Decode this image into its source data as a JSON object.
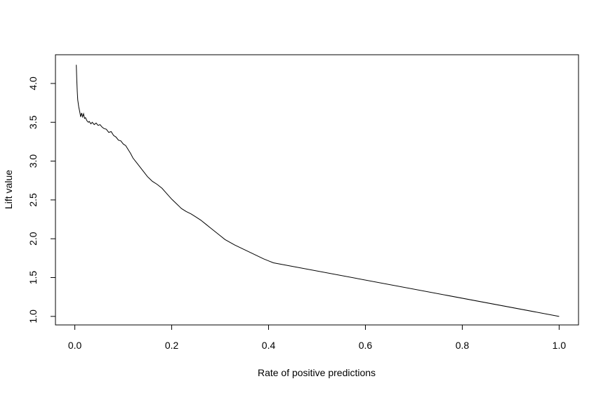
{
  "chart_data": {
    "type": "line",
    "title": "",
    "xlabel": "Rate of positive predictions",
    "ylabel": "Lift value",
    "xlim": [
      -0.04,
      1.04
    ],
    "ylim": [
      0.89,
      4.37
    ],
    "x_ticks": [
      0.0,
      0.2,
      0.4,
      0.6,
      0.8,
      1.0
    ],
    "x_tick_labels": [
      "0.0",
      "0.2",
      "0.4",
      "0.6",
      "0.8",
      "1.0"
    ],
    "y_ticks": [
      1.0,
      1.5,
      2.0,
      2.5,
      3.0,
      3.5,
      4.0
    ],
    "y_tick_labels": [
      "1.0",
      "1.5",
      "2.0",
      "2.5",
      "3.0",
      "3.5",
      "4.0"
    ],
    "grid": false,
    "legend": "none",
    "line_color": "#000000",
    "series": [
      {
        "x": [
          0.003,
          0.004,
          0.005,
          0.006,
          0.008,
          0.01,
          0.012,
          0.014,
          0.016,
          0.018,
          0.02,
          0.022,
          0.025,
          0.028,
          0.03,
          0.033,
          0.036,
          0.04,
          0.044,
          0.048,
          0.052,
          0.056,
          0.06,
          0.065,
          0.07,
          0.075,
          0.08,
          0.085,
          0.09,
          0.095,
          0.1,
          0.105,
          0.11,
          0.115,
          0.12,
          0.13,
          0.14,
          0.15,
          0.16,
          0.17,
          0.18,
          0.19,
          0.2,
          0.21,
          0.22,
          0.23,
          0.24,
          0.25,
          0.26,
          0.27,
          0.28,
          0.29,
          0.3,
          0.31,
          0.33,
          0.35,
          0.37,
          0.39,
          0.41,
          1.0
        ],
        "y": [
          4.24,
          4.05,
          3.9,
          3.79,
          3.7,
          3.64,
          3.57,
          3.62,
          3.57,
          3.61,
          3.55,
          3.56,
          3.52,
          3.5,
          3.51,
          3.48,
          3.5,
          3.47,
          3.49,
          3.46,
          3.47,
          3.44,
          3.42,
          3.41,
          3.37,
          3.38,
          3.33,
          3.31,
          3.27,
          3.26,
          3.22,
          3.2,
          3.15,
          3.1,
          3.04,
          2.96,
          2.88,
          2.8,
          2.74,
          2.7,
          2.65,
          2.58,
          2.51,
          2.45,
          2.39,
          2.35,
          2.32,
          2.28,
          2.24,
          2.19,
          2.14,
          2.09,
          2.04,
          1.99,
          1.92,
          1.86,
          1.8,
          1.74,
          1.69,
          1.0
        ]
      }
    ]
  }
}
